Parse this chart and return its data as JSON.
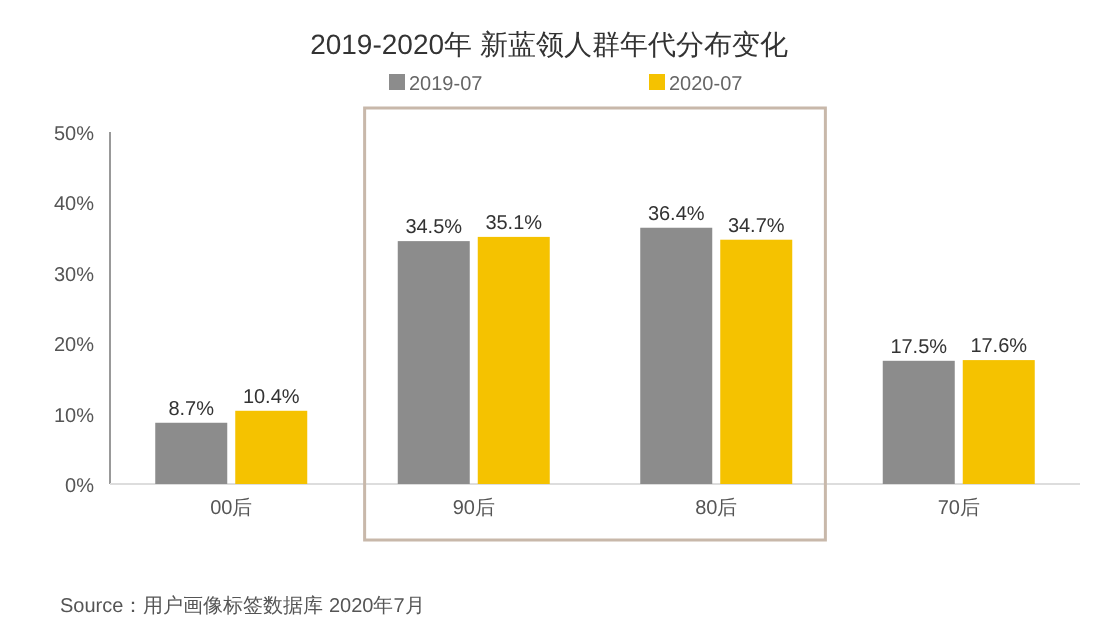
{
  "chart_data": {
    "type": "bar",
    "title": "2019-2020年 新蓝领人群年代分布变化",
    "categories": [
      "00后",
      "90后",
      "80后",
      "70后"
    ],
    "series": [
      {
        "name": "2019-07",
        "color": "#8c8c8c",
        "values": [
          8.7,
          34.5,
          36.4,
          17.5
        ]
      },
      {
        "name": "2020-07",
        "color": "#f5c200",
        "values": [
          10.4,
          35.1,
          34.7,
          17.6
        ]
      }
    ],
    "ylim": [
      0,
      50
    ],
    "yticks": [
      {
        "value": 0,
        "label": "0%"
      },
      {
        "value": 10,
        "label": "10%"
      },
      {
        "value": 20,
        "label": "20%"
      },
      {
        "value": 30,
        "label": "30%"
      },
      {
        "value": 40,
        "label": "40%"
      },
      {
        "value": 50,
        "label": "50%"
      }
    ],
    "value_labels": [
      [
        "8.7%",
        "34.5%",
        "36.4%",
        "17.5%"
      ],
      [
        "10.4%",
        "35.1%",
        "34.7%",
        "17.6%"
      ]
    ],
    "legend": "top",
    "grid": false,
    "annotations": [
      "Source：用户画像标签数据库 2020年7月"
    ]
  }
}
